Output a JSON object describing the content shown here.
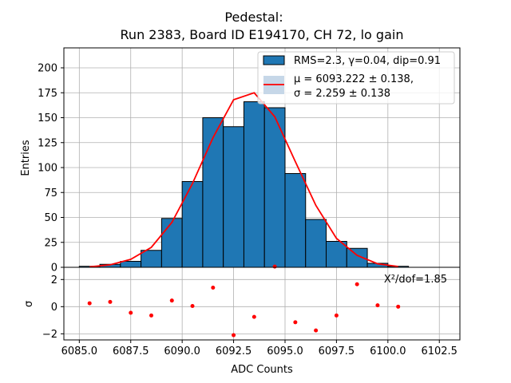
{
  "chart_data": {
    "type": "histogram",
    "title_line1": "Pedestal:",
    "title_line2": "Run 2383, Board ID E194170, CH 72, lo gain",
    "xlabel": "ADC Counts",
    "ylabel_top": "Entries",
    "ylabel_bottom": "σ",
    "xlim": [
      6084.25,
      6103.5
    ],
    "ylim_top": [
      0,
      220
    ],
    "ylim_bottom": [
      -2.45,
      2.9
    ],
    "x_ticks": [
      6085.0,
      6087.5,
      6090.0,
      6092.5,
      6095.0,
      6097.5,
      6100.0,
      6102.5
    ],
    "x_tick_labels": [
      "6085.0",
      "6087.5",
      "6090.0",
      "6092.5",
      "6095.0",
      "6097.5",
      "6100.0",
      "6102.5"
    ],
    "y_ticks_top": [
      0,
      25,
      50,
      75,
      100,
      125,
      150,
      175,
      200
    ],
    "y_tick_labels_top": [
      "0",
      "25",
      "50",
      "75",
      "100",
      "125",
      "150",
      "175",
      "200"
    ],
    "y_ticks_bottom": [
      -2,
      0,
      2
    ],
    "y_tick_labels_bottom": [
      "−2",
      "0",
      "2"
    ],
    "bins": {
      "edges": [
        6085,
        6086,
        6087,
        6088,
        6089,
        6090,
        6091,
        6092,
        6093,
        6094,
        6095,
        6096,
        6097,
        6098,
        6099,
        6100,
        6101
      ],
      "counts": [
        1,
        3,
        6,
        17,
        49,
        86,
        150,
        141,
        166,
        160,
        94,
        48,
        26,
        19,
        4,
        1
      ]
    },
    "fit_curve": {
      "x": [
        6085.5,
        6086.5,
        6087.5,
        6088.5,
        6089.5,
        6090.5,
        6091.5,
        6092.5,
        6093.5,
        6094.5,
        6095.5,
        6096.5,
        6097.5,
        6098.5,
        6099.5,
        6100.5
      ],
      "y": [
        0.5,
        2.5,
        8,
        20,
        45,
        84,
        130,
        168,
        175,
        151,
        106,
        62,
        29,
        12,
        3.5,
        0.8
      ]
    },
    "residuals": {
      "x": [
        6085.5,
        6086.5,
        6087.5,
        6088.5,
        6089.5,
        6090.5,
        6091.5,
        6092.5,
        6093.5,
        6094.5,
        6095.5,
        6096.5,
        6097.5,
        6098.5,
        6099.5,
        6100.5
      ],
      "y": [
        0.25,
        0.35,
        -0.45,
        -0.65,
        0.45,
        0.05,
        1.4,
        -2.1,
        -0.75,
        2.95,
        -1.15,
        -1.75,
        -0.65,
        1.65,
        0.1,
        0.0
      ]
    },
    "legend": {
      "hist_label": "RMS=2.3, γ=0.04, dip=0.91",
      "fit_label_line1": "μ = 6093.222 ± 0.138,",
      "fit_label_line2": "σ = 2.259 ± 0.138"
    },
    "chi2_label": "X²/dof=1.85",
    "colors": {
      "bar": "#1f77b4",
      "bar_edge": "#000000",
      "fit": "#ff0000",
      "residual": "#ff0000",
      "grid": "#b0b0b0",
      "legend_patch": "#c6d7e8"
    }
  }
}
